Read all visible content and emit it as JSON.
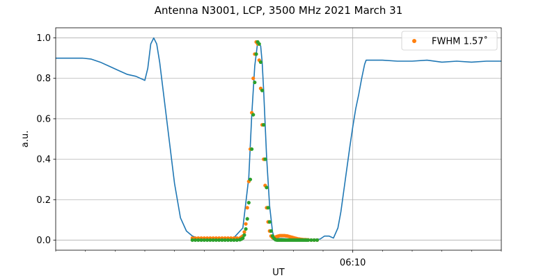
{
  "chart_data": {
    "type": "line",
    "title": "Antenna N3001, LCP, 3500 MHz 2021 March 31",
    "xlabel": "UT",
    "ylabel": "a.u.",
    "x_unit": "minutes UT",
    "xlim": [
      360,
      375
    ],
    "ylim": [
      -0.05,
      1.05
    ],
    "yticks": [
      0.0,
      0.2,
      0.4,
      0.6,
      0.8,
      1.0
    ],
    "ytick_labels": [
      "0.0",
      "0.2",
      "0.4",
      "0.6",
      "0.8",
      "1.0"
    ],
    "xticks_labeled": [
      370
    ],
    "xtick_labels": [
      "06:10"
    ],
    "xticks_minor": [
      360,
      361,
      362,
      363,
      364,
      365,
      366,
      367,
      368,
      369,
      371,
      372,
      373,
      374,
      375
    ],
    "grid": true,
    "legend_position": "top-right",
    "series": [
      {
        "kind": "line",
        "color": "#1f77b4",
        "x": [
          360.0,
          360.3,
          360.6,
          360.9,
          361.2,
          361.5,
          361.8,
          362.1,
          362.4,
          362.7,
          363.0,
          363.1,
          363.2,
          363.3,
          363.4,
          363.5,
          363.6,
          363.8,
          364.0,
          364.2,
          364.4,
          364.6,
          364.8,
          365.0,
          365.5,
          366.0,
          366.3,
          366.5,
          366.6,
          366.7,
          366.8,
          366.9,
          366.95,
          367.0,
          367.1,
          367.2,
          367.3,
          367.35,
          367.4,
          367.5,
          367.6,
          367.7,
          367.8,
          368.0,
          368.5,
          368.9,
          369.05,
          369.2,
          369.35,
          369.5,
          369.6,
          369.75,
          369.9,
          370.0,
          370.1,
          370.2,
          370.3,
          370.4,
          370.45,
          371.0,
          371.5,
          372.0,
          372.5,
          373.0,
          373.5,
          374.0,
          374.5,
          375.0
        ],
        "y": [
          0.9,
          0.9,
          0.9,
          0.9,
          0.895,
          0.88,
          0.86,
          0.84,
          0.82,
          0.81,
          0.79,
          0.85,
          0.97,
          1.0,
          0.97,
          0.88,
          0.76,
          0.52,
          0.28,
          0.11,
          0.045,
          0.02,
          0.008,
          0.006,
          0.006,
          0.012,
          0.06,
          0.31,
          0.62,
          0.86,
          0.98,
          0.96,
          0.88,
          0.74,
          0.41,
          0.17,
          0.04,
          0.015,
          0.01,
          0.008,
          0.008,
          0.007,
          0.006,
          0.004,
          0.003,
          0.005,
          0.02,
          0.02,
          0.01,
          0.06,
          0.14,
          0.3,
          0.46,
          0.56,
          0.65,
          0.72,
          0.8,
          0.87,
          0.89,
          0.89,
          0.885,
          0.885,
          0.89,
          0.88,
          0.885,
          0.88,
          0.885,
          0.885
        ]
      },
      {
        "kind": "scatter",
        "color": "#ff7f0e",
        "name": "FWHM 1.57˚",
        "x": [
          364.6,
          364.7,
          364.8,
          364.9,
          365.0,
          365.1,
          365.2,
          365.3,
          365.4,
          365.5,
          365.6,
          365.7,
          365.8,
          365.9,
          366.0,
          366.1,
          366.2,
          366.25,
          366.3,
          366.35,
          366.4,
          366.45,
          366.5,
          366.55,
          366.6,
          366.65,
          366.7,
          366.75,
          366.8,
          366.85,
          366.9,
          366.95,
          367.0,
          367.05,
          367.1,
          367.15,
          367.2,
          367.25,
          367.3,
          367.35,
          367.4,
          367.45,
          367.5,
          367.55,
          367.6,
          367.65,
          367.7,
          367.75,
          367.8,
          367.85,
          367.9,
          367.95,
          368.0,
          368.05,
          368.1,
          368.15,
          368.2,
          368.25,
          368.3,
          368.35,
          368.4,
          368.45,
          368.5,
          368.6,
          368.7,
          368.8
        ],
        "y": [
          0.01,
          0.01,
          0.01,
          0.01,
          0.01,
          0.01,
          0.01,
          0.01,
          0.01,
          0.01,
          0.01,
          0.01,
          0.01,
          0.01,
          0.01,
          0.01,
          0.01,
          0.015,
          0.02,
          0.04,
          0.08,
          0.16,
          0.29,
          0.45,
          0.63,
          0.8,
          0.92,
          0.98,
          0.97,
          0.89,
          0.75,
          0.57,
          0.4,
          0.27,
          0.16,
          0.09,
          0.045,
          0.02,
          0.012,
          0.012,
          0.015,
          0.018,
          0.02,
          0.022,
          0.022,
          0.022,
          0.022,
          0.021,
          0.02,
          0.018,
          0.016,
          0.014,
          0.012,
          0.01,
          0.008,
          0.006,
          0.005,
          0.004,
          0.003,
          0.002,
          0.002,
          0.001,
          0.001,
          0.0,
          0.0,
          0.0
        ]
      },
      {
        "kind": "scatter",
        "color": "#2ca02c",
        "x": [
          364.6,
          364.7,
          364.8,
          364.9,
          365.0,
          365.1,
          365.2,
          365.3,
          365.4,
          365.5,
          365.6,
          365.7,
          365.8,
          365.9,
          366.0,
          366.1,
          366.2,
          366.25,
          366.3,
          366.35,
          366.4,
          366.45,
          366.5,
          366.55,
          366.6,
          366.65,
          366.7,
          366.75,
          366.8,
          366.85,
          366.9,
          366.95,
          367.0,
          367.05,
          367.1,
          367.15,
          367.2,
          367.25,
          367.3,
          367.35,
          367.4,
          367.45,
          367.5,
          367.55,
          367.6,
          367.65,
          367.7,
          367.75,
          367.8,
          367.85,
          367.9,
          367.95,
          368.0,
          368.05,
          368.1,
          368.15,
          368.2,
          368.25,
          368.3,
          368.35,
          368.4,
          368.45,
          368.5,
          368.6,
          368.7,
          368.8
        ],
        "y": [
          0.0,
          0.0,
          0.0,
          0.0,
          0.0,
          0.0,
          0.0,
          0.0,
          0.0,
          0.0,
          0.0,
          0.0,
          0.0,
          0.0,
          0.0,
          0.0,
          0.002,
          0.005,
          0.01,
          0.025,
          0.055,
          0.105,
          0.185,
          0.3,
          0.45,
          0.62,
          0.78,
          0.92,
          0.98,
          0.97,
          0.88,
          0.74,
          0.57,
          0.4,
          0.26,
          0.16,
          0.09,
          0.045,
          0.02,
          0.008,
          0.002,
          0.0,
          0.0,
          0.0,
          0.0,
          0.0,
          0.0,
          0.0,
          0.0,
          0.0,
          0.0,
          0.0,
          0.0,
          0.0,
          0.0,
          0.0,
          0.0,
          0.0,
          0.0,
          0.0,
          0.0,
          0.0,
          0.0,
          0.0,
          0.0,
          0.0
        ]
      }
    ]
  }
}
